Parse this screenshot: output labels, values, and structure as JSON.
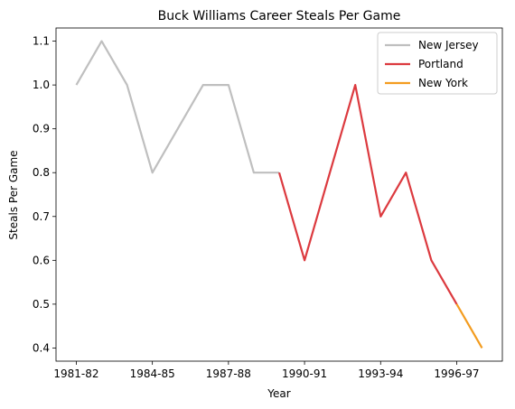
{
  "chart_data": {
    "type": "line",
    "title": "Buck Williams Career Steals Per Game",
    "xlabel": "Year",
    "ylabel": "Steals Per Game",
    "x_categories": [
      "1981-82",
      "1982-83",
      "1983-84",
      "1984-85",
      "1985-86",
      "1986-87",
      "1987-88",
      "1988-89",
      "1989-90",
      "1990-91",
      "1991-92",
      "1992-93",
      "1993-94",
      "1994-95",
      "1995-96",
      "1996-97",
      "1997-98"
    ],
    "x_tick_labels": [
      "1981-82",
      "1984-85",
      "1987-88",
      "1990-91",
      "1993-94",
      "1996-97"
    ],
    "ylim": [
      0.37,
      1.13
    ],
    "y_ticks": [
      0.4,
      0.5,
      0.6,
      0.7,
      0.8,
      0.9,
      1.0,
      1.1
    ],
    "y_tick_labels": [
      "0.4",
      "0.5",
      "0.6",
      "0.7",
      "0.8",
      "0.9",
      "1.0",
      "1.1"
    ],
    "legend_position": "top-right",
    "grid": false,
    "series": [
      {
        "name": "New Jersey",
        "color": "#bfbfbf",
        "x": [
          "1981-82",
          "1982-83",
          "1983-84",
          "1984-85",
          "1985-86",
          "1986-87",
          "1987-88",
          "1988-89",
          "1989-90"
        ],
        "values": [
          1.0,
          1.1,
          1.0,
          0.8,
          0.9,
          1.0,
          1.0,
          0.8,
          0.8
        ]
      },
      {
        "name": "Portland",
        "color": "#dc3a3f",
        "x": [
          "1989-90",
          "1990-91",
          "1991-92",
          "1992-93",
          "1993-94",
          "1994-95",
          "1995-96",
          "1996-97"
        ],
        "values": [
          0.8,
          0.6,
          0.8,
          1.0,
          0.7,
          0.8,
          0.6,
          0.5
        ]
      },
      {
        "name": "New York",
        "color": "#f39c1f",
        "x": [
          "1996-97",
          "1997-98"
        ],
        "values": [
          0.5,
          0.4
        ]
      }
    ]
  }
}
